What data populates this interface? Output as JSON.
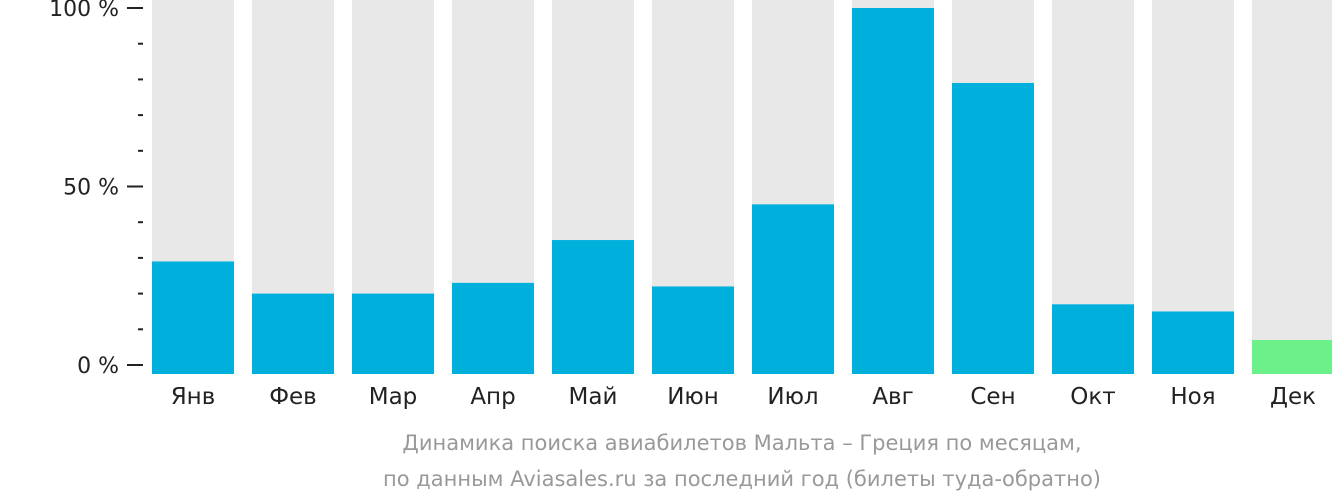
{
  "chart_data": {
    "type": "bar",
    "categories": [
      "Янв",
      "Фев",
      "Мар",
      "Апр",
      "Май",
      "Июн",
      "Июл",
      "Авг",
      "Сен",
      "Окт",
      "Ноя",
      "Дек"
    ],
    "values": [
      29,
      20,
      20,
      23,
      35,
      22,
      45,
      100,
      79,
      17,
      15,
      7
    ],
    "ylim": [
      0,
      100
    ],
    "y_ticks": [
      {
        "value": 100,
        "label": "100 %"
      },
      {
        "value": 50,
        "label": "50 %"
      },
      {
        "value": 0,
        "label": "0 %"
      }
    ],
    "minor_tick_step": 10,
    "highlight_index": 11,
    "colors": {
      "bar": "#00b0dc",
      "highlight": "#6cf08a",
      "background_bar": "#e8e8e8",
      "axis": "#222222"
    },
    "caption": [
      "Динамика поиска авиабилетов Мальта – Греция по месяцам,",
      "по данным Aviasales.ru за последний год (билеты туда-обратно)"
    ]
  }
}
